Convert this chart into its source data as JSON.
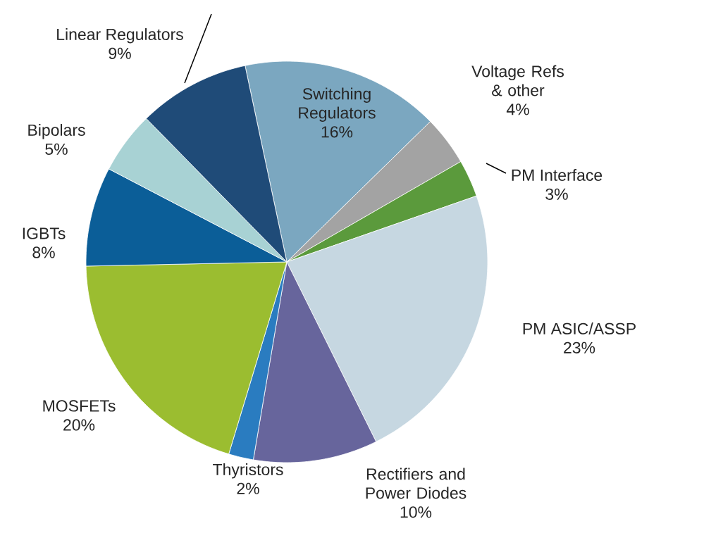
{
  "chart_data": {
    "type": "pie",
    "categories": [
      "Switching Regulators",
      "Voltage Refs & other",
      "PM Interface",
      "PM ASIC/ASSP",
      "Rectifiers and Power Diodes",
      "Thyristors",
      "MOSFETs",
      "IGBTs",
      "Bipolars",
      "Linear Regulators"
    ],
    "values": [
      16,
      4,
      3,
      23,
      10,
      2,
      20,
      8,
      5,
      9
    ],
    "value_labels": [
      "16%",
      "4%",
      "3%",
      "23%",
      "10%",
      "2%",
      "20%",
      "8%",
      "5%",
      "9%"
    ],
    "colors": [
      "#7ba7c0",
      "#a3a3a3",
      "#5b9a3c",
      "#c6d7e1",
      "#67659c",
      "#2a7cc0",
      "#9bbd30",
      "#0b5e98",
      "#a8d2d4",
      "#1f4b78"
    ]
  }
}
